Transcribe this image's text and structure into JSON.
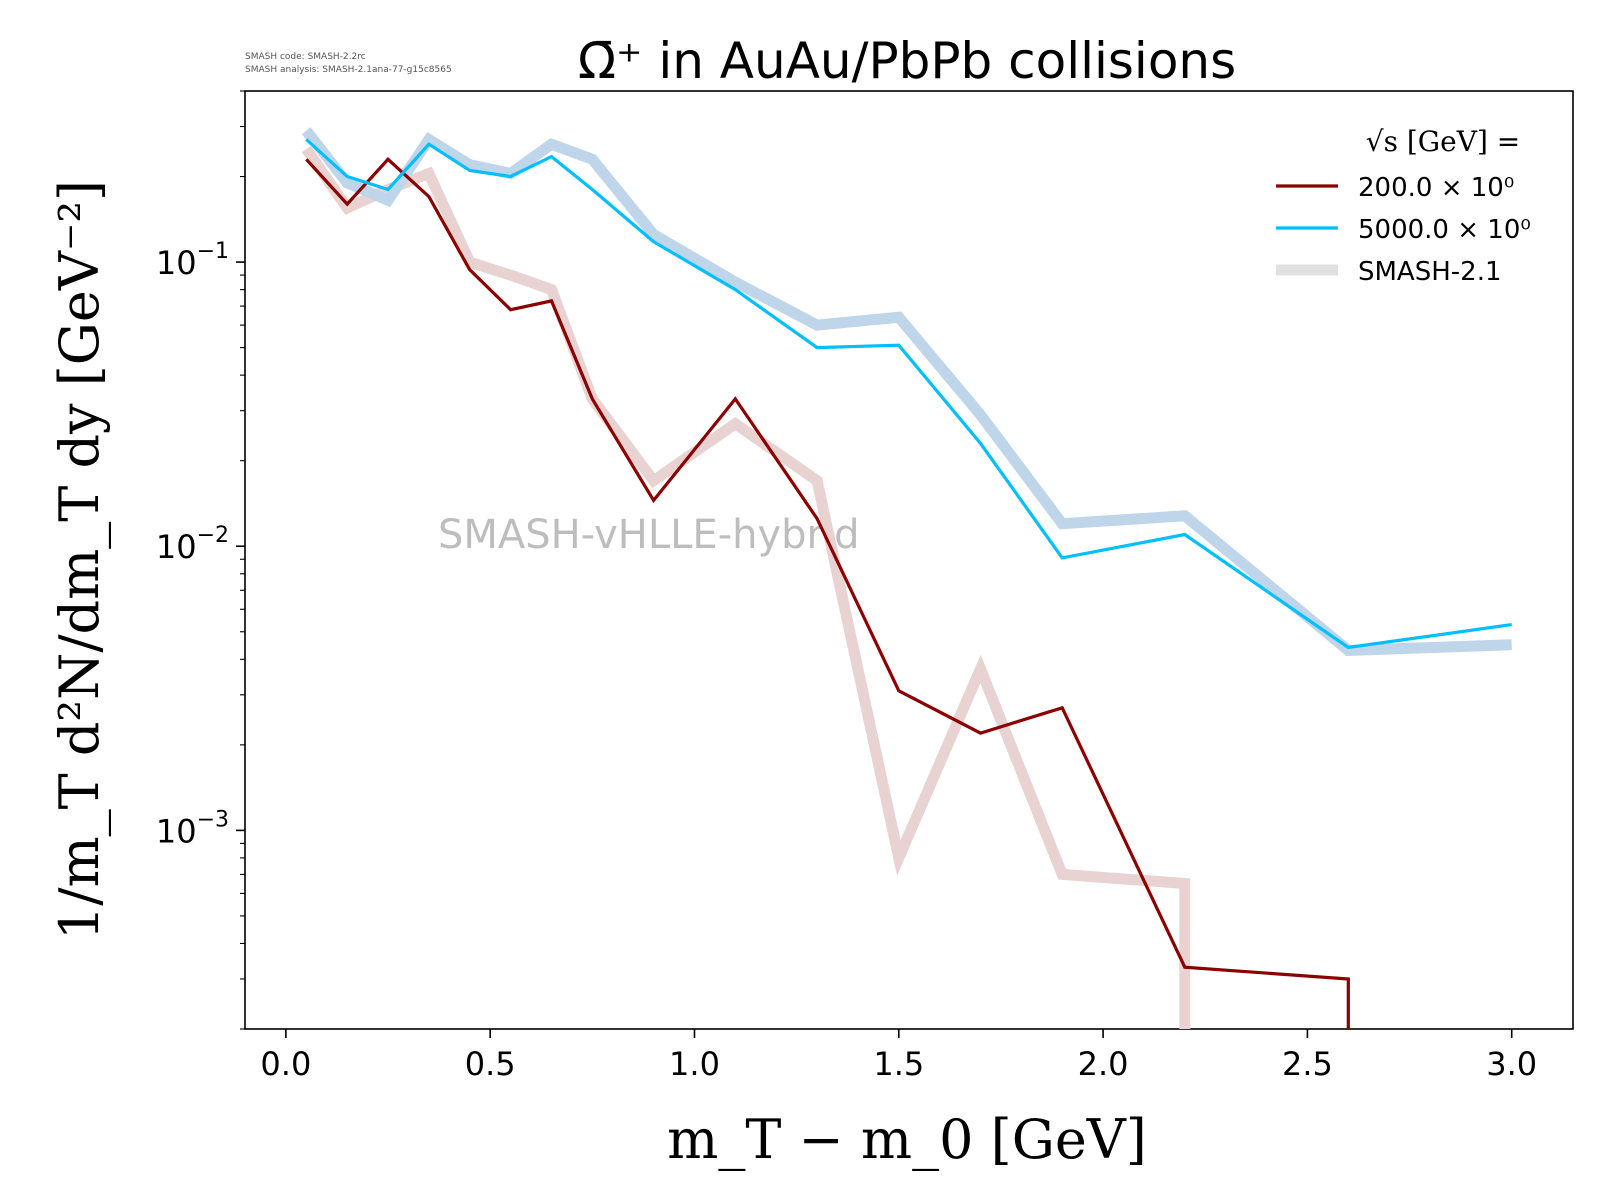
{
  "version_info": {
    "line1": "SMASH code:      SMASH-2.2rc",
    "line2": "SMASH analysis: SMASH-2.1ana-77-g15c8565"
  },
  "watermark": "SMASH-vHLLE-hybrid",
  "chart_data": {
    "type": "line",
    "title": "Ω̄⁺ in AuAu/PbPb collisions",
    "xlabel": "m_T − m_0 [GeV]",
    "ylabel": "1/m_T d²N/dm_T dy [GeV⁻²]",
    "xlim": [
      -0.1,
      3.15
    ],
    "ylim": [
      0.0002,
      0.4
    ],
    "yscale": "log",
    "grid": false,
    "legend_position": "top-right",
    "x_ticks": [
      "0.0",
      "0.5",
      "1.0",
      "1.5",
      "2.0",
      "2.5",
      "3.0"
    ],
    "x_tick_values": [
      0.0,
      0.5,
      1.0,
      1.5,
      2.0,
      2.5,
      3.0
    ],
    "y_ticks": [
      {
        "value": 0.1,
        "base": "10",
        "exp": "−1"
      },
      {
        "value": 0.01,
        "base": "10",
        "exp": "−2"
      },
      {
        "value": 0.001,
        "base": "10",
        "exp": "−3"
      }
    ],
    "legend": {
      "title": "√s [GeV] =",
      "entries": [
        {
          "label": "200.0 × 10⁰",
          "color": "#8b0000",
          "style": "thin"
        },
        {
          "label": "5000.0 × 10⁰",
          "color": "#00bfff",
          "style": "thin"
        },
        {
          "label": "SMASH-2.1",
          "color": "#e0e0e0",
          "style": "thick"
        }
      ]
    },
    "series": [
      {
        "name": "SMASH-2.1",
        "color": "#e9d2d2",
        "style": "thick",
        "x": [
          0.05,
          0.15,
          0.25,
          0.35,
          0.45,
          0.55,
          0.65,
          0.75,
          0.9,
          1.1,
          1.3,
          1.5,
          1.7,
          1.9,
          2.2,
          2.2
        ],
        "y": [
          0.25,
          0.155,
          0.18,
          0.205,
          0.1,
          0.09,
          0.08,
          0.033,
          0.017,
          0.027,
          0.017,
          0.0008,
          0.0037,
          0.0007,
          0.00065,
          0.0002
        ]
      },
      {
        "name": "SMASH-2.1",
        "color": "#bed5ea",
        "style": "thick",
        "x": [
          0.05,
          0.15,
          0.25,
          0.35,
          0.45,
          0.55,
          0.65,
          0.75,
          0.9,
          1.1,
          1.3,
          1.5,
          1.7,
          1.9,
          2.2,
          2.6,
          3.0
        ],
        "y": [
          0.29,
          0.19,
          0.165,
          0.27,
          0.22,
          0.205,
          0.26,
          0.23,
          0.125,
          0.085,
          0.06,
          0.064,
          0.029,
          0.012,
          0.0128,
          0.0043,
          0.0045
        ]
      },
      {
        "name": "200.0 × 10⁰",
        "color": "#8b0000",
        "style": "thin",
        "x": [
          0.05,
          0.15,
          0.25,
          0.35,
          0.45,
          0.55,
          0.65,
          0.75,
          0.9,
          1.1,
          1.3,
          1.5,
          1.7,
          1.9,
          2.2,
          2.6,
          2.6
        ],
        "y": [
          0.23,
          0.16,
          0.23,
          0.17,
          0.094,
          0.068,
          0.073,
          0.033,
          0.0145,
          0.033,
          0.0125,
          0.0031,
          0.0022,
          0.0027,
          0.00033,
          0.0003,
          0.0002
        ]
      },
      {
        "name": "5000.0 × 10⁰",
        "color": "#00bfff",
        "style": "thin",
        "x": [
          0.05,
          0.15,
          0.25,
          0.35,
          0.45,
          0.55,
          0.65,
          0.75,
          0.9,
          1.1,
          1.3,
          1.5,
          1.7,
          1.9,
          2.2,
          2.6,
          3.0
        ],
        "y": [
          0.27,
          0.2,
          0.18,
          0.26,
          0.21,
          0.2,
          0.235,
          0.18,
          0.118,
          0.08,
          0.05,
          0.051,
          0.023,
          0.0091,
          0.011,
          0.0044,
          0.0053
        ]
      }
    ]
  }
}
